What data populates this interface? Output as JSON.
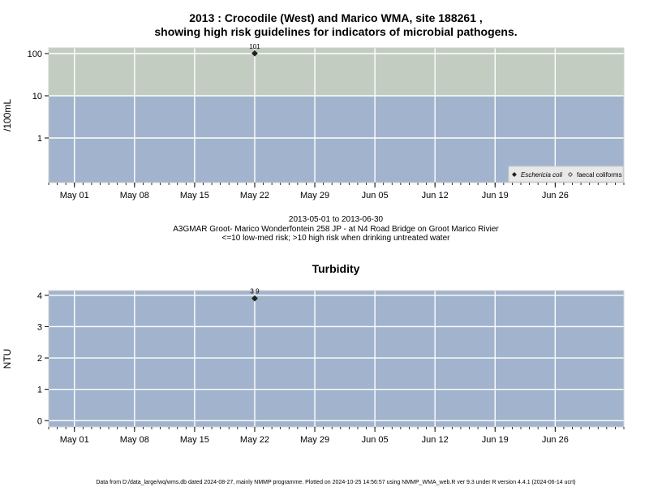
{
  "chart_data": [
    {
      "type": "scatter",
      "title_line1": "2013 : Crocodile (West) and Marico WMA, site 188261 ,",
      "title_line2": "showing high risk guidelines for indicators of microbial pathogens.",
      "ylabel": "/100mL",
      "y_scale": "log",
      "y_ticks": [
        "1",
        "10",
        "100"
      ],
      "x_ticks": [
        "May 01",
        "May 08",
        "May 15",
        "May 22",
        "May 29",
        "Jun 05",
        "Jun 12",
        "Jun 19",
        "Jun 26"
      ],
      "xlim": [
        "2013-04-28",
        "2013-07-04"
      ],
      "risk_threshold": 10,
      "band_colors": {
        "low": "#a2b4cd",
        "high": "#c2ccc1"
      },
      "grid": true,
      "legend_position": "bottom-right",
      "series": [
        {
          "name": "Eschericia coli",
          "marker": "filled-diamond",
          "points": [
            {
              "x": "2013-05-22",
              "y": 101,
              "label": "101"
            }
          ]
        },
        {
          "name": "faecal coliforms",
          "marker": "open-diamond",
          "points": []
        }
      ],
      "caption_lines": [
        "2013-05-01 to 2013-06-30",
        "A3GMAR Groot- Marico Wonderfontein 258 JP - at N4 Road Bridge on Groot Marico Rivier",
        "<=10 low-med risk; >10 high risk when drinking untreated water"
      ]
    },
    {
      "type": "scatter",
      "title": "Turbidity",
      "ylabel": "NTU",
      "y_ticks": [
        "0",
        "1",
        "2",
        "3",
        "4"
      ],
      "ylim": [
        -0.2,
        4.15
      ],
      "x_ticks": [
        "May 01",
        "May 08",
        "May 15",
        "May 22",
        "May 29",
        "Jun 05",
        "Jun 12",
        "Jun 19",
        "Jun 26"
      ],
      "xlim": [
        "2013-04-28",
        "2013-07-04"
      ],
      "band_color": "#a2b4cd",
      "grid": true,
      "series": [
        {
          "marker": "filled-diamond",
          "points": [
            {
              "x": "2013-05-22",
              "y": 3.9,
              "label": "3.9"
            }
          ]
        }
      ]
    }
  ],
  "footer": "Data from D:/data_large/wq/wms.db dated 2024-08-27, mainly NMMP programme. Plotted on 2024-10-25 14:56:57 using NMMP_WMA_web.R ver 9.3 under R version 4.4.1 (2024-06-14 ucrt)"
}
